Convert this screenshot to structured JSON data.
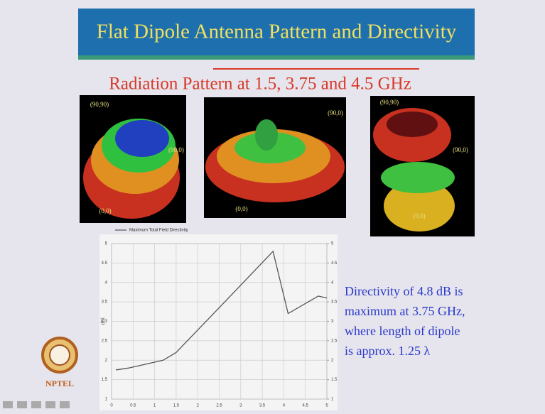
{
  "header": {
    "title": "Flat Dipole Antenna Pattern and Directivity"
  },
  "subtitle": "Radiation Pattern at 1.5, 3.75 and 4.5 GHz",
  "patterns": [
    {
      "labels": [
        "(90,90)",
        "(90,0)",
        "(0,0)"
      ]
    },
    {
      "labels": [
        "(90,0)",
        "(0,0)"
      ]
    },
    {
      "labels": [
        "(90,90)",
        "(90,0)",
        "(0,0)"
      ]
    }
  ],
  "chart_data": {
    "type": "line",
    "x": [
      0.1,
      0.4,
      1.2,
      1.5,
      2.5,
      3.75,
      4.1,
      4.8,
      5
    ],
    "series": [
      {
        "name": "Maximum Total Field Directivity",
        "color": "#555555",
        "values": [
          1.75,
          1.8,
          2.0,
          2.2,
          3.35,
          4.8,
          3.2,
          3.65,
          3.6
        ]
      }
    ],
    "xlim": [
      0,
      5
    ],
    "xticks": [
      0,
      0.5,
      1,
      1.5,
      2,
      2.5,
      3,
      3.5,
      4,
      4.5,
      5
    ],
    "ylim": [
      1,
      5
    ],
    "yticks": [
      1,
      1.5,
      2,
      2.5,
      3,
      3.5,
      4,
      4.5,
      5
    ],
    "y2lim": [
      1,
      5
    ],
    "y2ticks": [
      1,
      1.5,
      2,
      2.5,
      3,
      3.5,
      4,
      4.5,
      5
    ],
    "ylabel": "dBi",
    "grid": true
  },
  "notes": {
    "lines": [
      "Directivity of 4.8 dB is",
      "maximum at 3.75 GHz,",
      "where length of dipole",
      "is approx. 1.25 λ"
    ]
  },
  "logo": {
    "text": "NPTEL"
  }
}
